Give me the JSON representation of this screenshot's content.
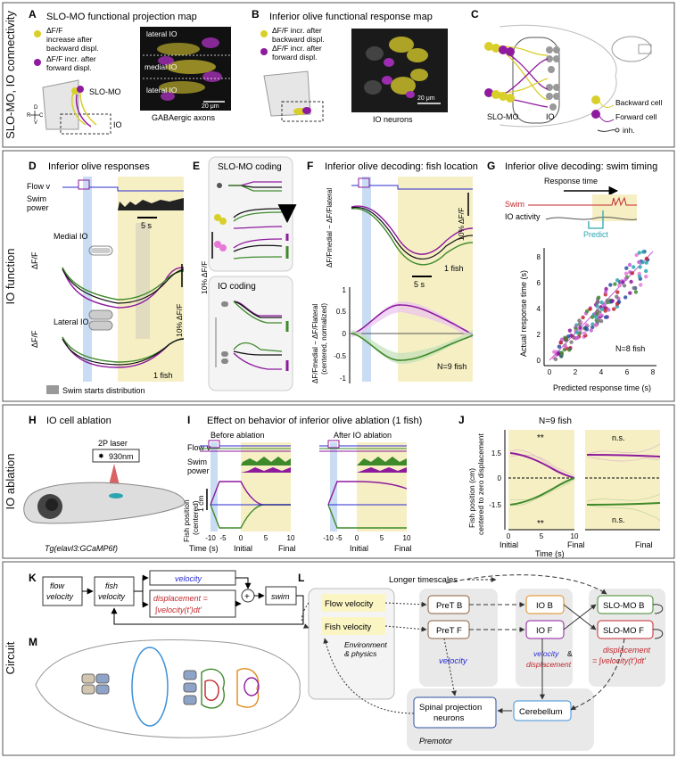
{
  "sections": {
    "s1": "SLO-MO, IO connectivity",
    "s2": "IO function",
    "s3": "IO ablation",
    "s4": "Circuit"
  },
  "panels": {
    "A": "A",
    "B": "B",
    "C": "C",
    "D": "D",
    "E": "E",
    "F": "F",
    "G": "G",
    "H": "H",
    "I": "I",
    "J": "J",
    "K": "K",
    "L": "L",
    "M": "M"
  },
  "colors": {
    "purple": "#8e1a9e",
    "green": "#3e8a2b",
    "yellow": "#d9cf2a",
    "blue": "#2b2bd1",
    "red": "#c2272d",
    "shade": "#f6efc4",
    "lightblue": "#c9dcf3",
    "teal": "#2aa6b0"
  },
  "A": {
    "title": "SLO-MO functional projection map",
    "leg1a": "ΔF/F",
    "leg1b": "increase after",
    "leg1c": "backward displ.",
    "leg2a": "ΔF/F incr. after",
    "leg2b": "forward displ.",
    "lateral_top": "lateral IO",
    "medial": "medial IO",
    "lateral_bottom": "lateral IO",
    "scale": "20 μm",
    "caption": "GABAergic axons",
    "slomo": "SLO-MO",
    "io": "IO",
    "d": "D",
    "r": "R",
    "c": "C",
    "v": "V"
  },
  "B": {
    "title": "Inferior olive functional response map",
    "leg1a": "ΔF/F incr. after",
    "leg1b": "backward displ.",
    "leg2a": "ΔF/F incr. after",
    "leg2b": "forward displ.",
    "scale": "20 μm",
    "caption": "IO neurons"
  },
  "C": {
    "slomo": "SLO-MO",
    "io": "IO",
    "backward": "Backward cell",
    "forward": "Forward cell",
    "inh": "inh."
  },
  "D": {
    "title": "Inferior olive responses",
    "flow": "Flow v",
    "swim1": "Swim",
    "swim2": "power",
    "time": "5 s",
    "medial": "Medial IO",
    "lateral": "Lateral IO",
    "dff": "ΔF/F",
    "scale": "10% ΔF/F",
    "fish": "1 fish",
    "dist": "Swim starts distribution"
  },
  "E": {
    "slomo": "SLO-MO coding",
    "io": "IO coding",
    "scale": "10% ΔF/F"
  },
  "F": {
    "title": "Inferior olive decoding: fish location",
    "ylab_top": "ΔF/Fmedial − ΔF/Flateral",
    "ylab_b1": "ΔF/Fmedial − ΔF/Flateral",
    "ylab_b2": "(centered, normalized)",
    "scale": "10% ΔF/F",
    "fish": "1 fish",
    "time": "5 s",
    "n": "N=9 fish",
    "ticks": [
      "1",
      "0.5",
      "0",
      "-0.5",
      "-1"
    ]
  },
  "G": {
    "title": "Inferior olive decoding: swim timing",
    "response": "Response time",
    "swim": "Swim",
    "activity": "IO activity",
    "predict": "Predict",
    "ylabel": "Actual response time (s)",
    "xlabel": "Predicted response time (s)",
    "n": "N=8 fish",
    "xticks": [
      "0",
      "2",
      "4",
      "6",
      "8"
    ],
    "yticks": [
      "0",
      "2",
      "4",
      "6",
      "8"
    ]
  },
  "H": {
    "title": "IO cell ablation",
    "laser": "2P laser",
    "nm": "930nm",
    "line": "Tg(elavl3:GCaMP6f)"
  },
  "I": {
    "title": "Effect on behavior of inferior olive ablation (1 fish)",
    "before": "Before ablation",
    "after": "After IO ablation",
    "flow": "Flow v",
    "swim1": "Swim",
    "swim2": "power",
    "ylab1": "Fish position",
    "ylab2": "(centered)",
    "cm": "1 cm",
    "xticks": [
      "-10",
      "-5",
      "0",
      "5",
      "10"
    ],
    "time": "Time (s)",
    "initial": "Initial",
    "final": "Final"
  },
  "J": {
    "title": "N=9 fish",
    "ylab1": "Fish position (cm)",
    "ylab2": "centered to zero displacement",
    "yticks": [
      "1.5",
      "0",
      "-1.5"
    ],
    "sig": "**",
    "ns": "n.s.",
    "xticks": [
      "0",
      "5",
      "10"
    ],
    "time": "Time (s)",
    "initial": "Initial",
    "final": "Final"
  },
  "K": {
    "flow1": "flow",
    "flow2": "velocity",
    "fish1": "fish",
    "fish2": "velocity",
    "velocity": "velocity",
    "disp": "displacement =",
    "integral": "∫velocity(t')dt'",
    "plus": "+",
    "swim": "swim"
  },
  "L": {
    "longer": "Longer timescales",
    "flow": "Flow velocity",
    "fishv": "Fish velocity",
    "env1": "Environment",
    "env2": "& physics",
    "pretb": "PreT B",
    "pretf": "PreT F",
    "velocity": "velocity",
    "iob": "IO B",
    "iof": "IO F",
    "io_lab1": "velocity",
    "io_lab2": "&",
    "io_lab3": "displacement",
    "slomob": "SLO-MO B",
    "slomof": "SLO-MO F",
    "disp": "displacement",
    "integral": "= ∫velocity(t')dt'",
    "spinal1": "Spinal projection",
    "spinal2": "neurons",
    "cereb": "Cerebellum",
    "premotor": "Premotor"
  }
}
